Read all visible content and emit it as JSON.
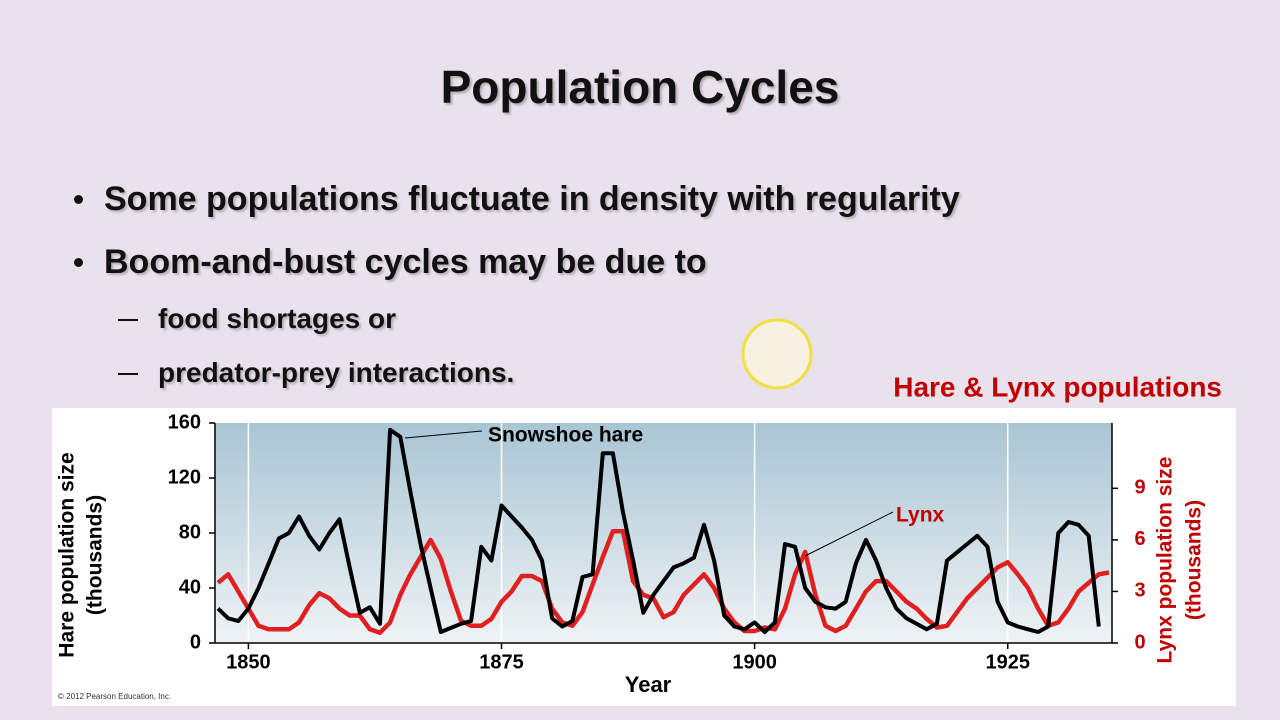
{
  "slide": {
    "title": "Population Cycles",
    "bullets": [
      {
        "text": "Some populations fluctuate in density with regularity",
        "level": 1
      },
      {
        "text": "Boom-and-bust cycles may be due to",
        "level": 1
      },
      {
        "text": "food shortages or",
        "level": 2
      },
      {
        "text": "predator-prey interactions.",
        "level": 2
      }
    ],
    "chart_heading": "Hare & Lynx populations",
    "copyright": "© 2012 Pearson Education, Inc."
  },
  "chart_data": {
    "type": "line",
    "x_label": "Year",
    "y_label": [
      "Hare population size",
      "(thousands)"
    ],
    "y2_label": [
      "Lynx population size",
      "(thousands)"
    ],
    "annotations": [
      {
        "text": "Snowshoe hare",
        "series": 0
      },
      {
        "text": "Lynx",
        "series": 1
      }
    ],
    "x": [
      1847,
      1848,
      1849,
      1850,
      1851,
      1852,
      1853,
      1854,
      1855,
      1856,
      1857,
      1858,
      1859,
      1860,
      1861,
      1862,
      1863,
      1864,
      1865,
      1866,
      1867,
      1868,
      1869,
      1870,
      1871,
      1872,
      1873,
      1874,
      1875,
      1876,
      1877,
      1878,
      1879,
      1880,
      1881,
      1882,
      1883,
      1884,
      1885,
      1886,
      1887,
      1888,
      1889,
      1890,
      1891,
      1892,
      1893,
      1894,
      1895,
      1896,
      1897,
      1898,
      1899,
      1900,
      1901,
      1902,
      1903,
      1904,
      1905,
      1906,
      1907,
      1908,
      1909,
      1910,
      1911,
      1912,
      1913,
      1914,
      1915,
      1916,
      1917,
      1918,
      1919,
      1920,
      1921,
      1922,
      1923,
      1924,
      1925,
      1926,
      1927,
      1928,
      1929,
      1930,
      1931,
      1932,
      1933,
      1934,
      1935
    ],
    "series": [
      {
        "name": "Snowshoe hare",
        "color": "#000000",
        "axis": "y",
        "values": [
          25,
          18,
          16,
          25,
          40,
          58,
          76,
          80,
          92,
          78,
          68,
          80,
          90,
          55,
          22,
          26,
          14,
          155,
          150,
          110,
          72,
          40,
          8,
          11,
          14,
          16,
          70,
          60,
          100,
          92,
          84,
          75,
          60,
          18,
          12,
          16,
          48,
          50,
          138,
          138,
          95,
          60,
          22,
          35,
          45,
          55,
          58,
          62,
          86,
          60,
          20,
          12,
          10,
          15,
          8,
          15,
          72,
          70,
          40,
          30,
          26,
          25,
          30,
          58,
          75,
          60,
          40,
          25,
          18,
          14,
          10,
          14,
          60,
          66,
          72,
          78,
          70,
          30,
          15,
          12,
          10,
          8,
          12,
          80,
          88,
          86,
          78,
          12,
          null
        ]
      },
      {
        "name": "Lynx",
        "color": "#e02020",
        "axis": "y2",
        "values": [
          3.5,
          4.0,
          3.0,
          2.0,
          1.0,
          0.8,
          0.8,
          0.8,
          1.2,
          2.2,
          2.9,
          2.6,
          2.0,
          1.6,
          1.6,
          0.8,
          0.6,
          1.2,
          2.8,
          4.0,
          5.0,
          6.0,
          4.9,
          3.0,
          1.3,
          1.0,
          1.0,
          1.4,
          2.4,
          3.0,
          3.9,
          3.9,
          3.6,
          2.0,
          1.2,
          1.0,
          1.8,
          3.4,
          5.0,
          6.5,
          6.5,
          3.6,
          2.8,
          2.6,
          1.5,
          1.8,
          2.8,
          3.4,
          4.0,
          3.2,
          2.0,
          1.2,
          0.7,
          0.7,
          0.9,
          0.8,
          2.0,
          4.0,
          5.3,
          2.8,
          1.0,
          0.7,
          1.0,
          2.0,
          3.0,
          3.6,
          3.6,
          3.0,
          2.4,
          2.0,
          1.4,
          0.9,
          1.0,
          1.8,
          2.6,
          3.2,
          3.8,
          4.4,
          4.7,
          4.0,
          3.2,
          2.0,
          1.0,
          1.2,
          2.0,
          3.0,
          3.5,
          4.0,
          4.1
        ]
      }
    ],
    "xlim": [
      1846.7,
      1935.3
    ],
    "xticks": [
      1850,
      1875,
      1900,
      1925
    ],
    "ylim": [
      0,
      160
    ],
    "yticks": [
      0,
      40,
      80,
      120,
      160
    ],
    "y2lim": [
      0,
      12.8
    ],
    "y2ticks": [
      0,
      3,
      6,
      9
    ],
    "grid": true
  }
}
